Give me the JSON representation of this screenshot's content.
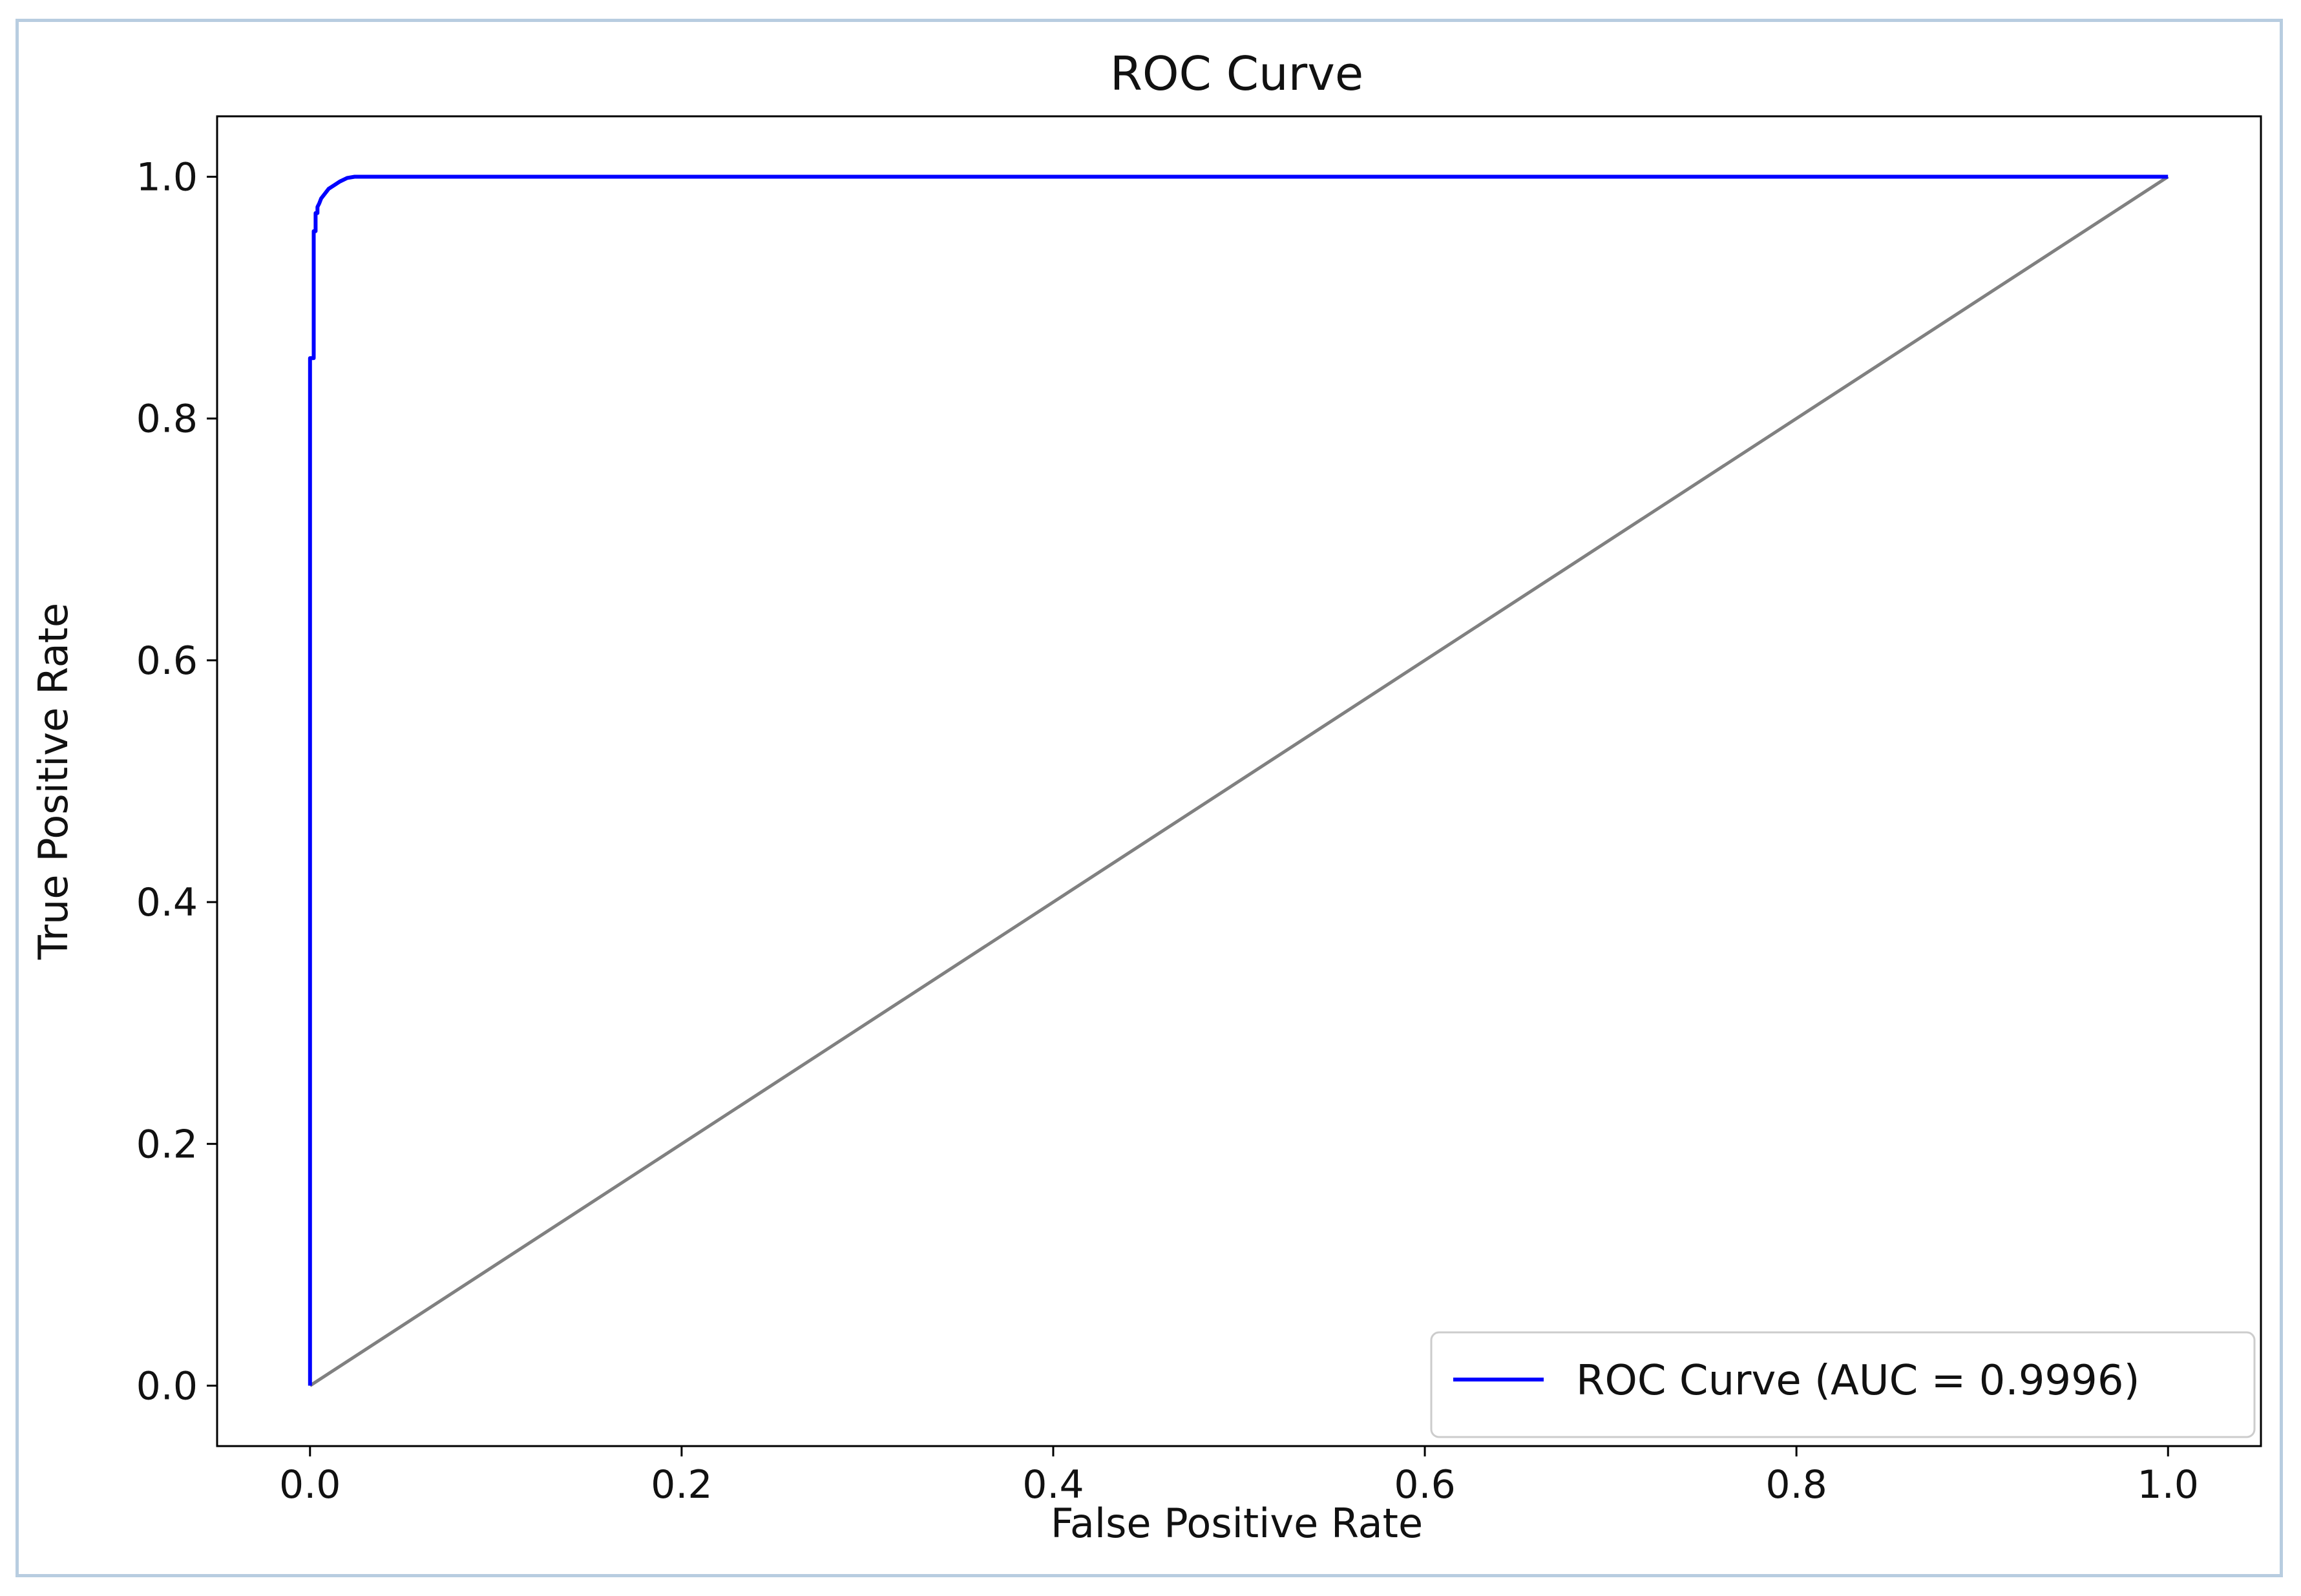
{
  "chart_data": {
    "type": "line",
    "title": "ROC Curve",
    "xlabel": "False Positive Rate",
    "ylabel": "True Positive Rate",
    "xlim": [
      -0.05,
      1.05
    ],
    "ylim": [
      -0.05,
      1.05
    ],
    "xticks": [
      0.0,
      0.2,
      0.4,
      0.6,
      0.8,
      1.0
    ],
    "yticks": [
      0.0,
      0.2,
      0.4,
      0.6,
      0.8,
      1.0
    ],
    "xtick_labels": [
      "0.0",
      "0.2",
      "0.4",
      "0.6",
      "0.8",
      "1.0"
    ],
    "ytick_labels": [
      "0.0",
      "0.2",
      "0.4",
      "0.6",
      "0.8",
      "1.0"
    ],
    "grid": false,
    "legend_position": "lower-right",
    "series": [
      {
        "name": "ROC Curve (AUC = 0.9996)",
        "color": "#0000ff",
        "x": [
          0.0,
          0.0,
          0.001,
          0.002,
          0.002,
          0.003,
          0.003,
          0.004,
          0.004,
          0.005,
          0.006,
          0.008,
          0.01,
          0.013,
          0.016,
          0.02,
          0.024,
          1.0
        ],
        "y": [
          0.0,
          0.85,
          0.85,
          0.85,
          0.955,
          0.955,
          0.97,
          0.97,
          0.975,
          0.978,
          0.982,
          0.986,
          0.99,
          0.993,
          0.996,
          0.999,
          1.0,
          1.0
        ]
      },
      {
        "name": "",
        "color": "#808080",
        "x": [
          0.0,
          1.0
        ],
        "y": [
          0.0,
          1.0
        ]
      }
    ]
  }
}
